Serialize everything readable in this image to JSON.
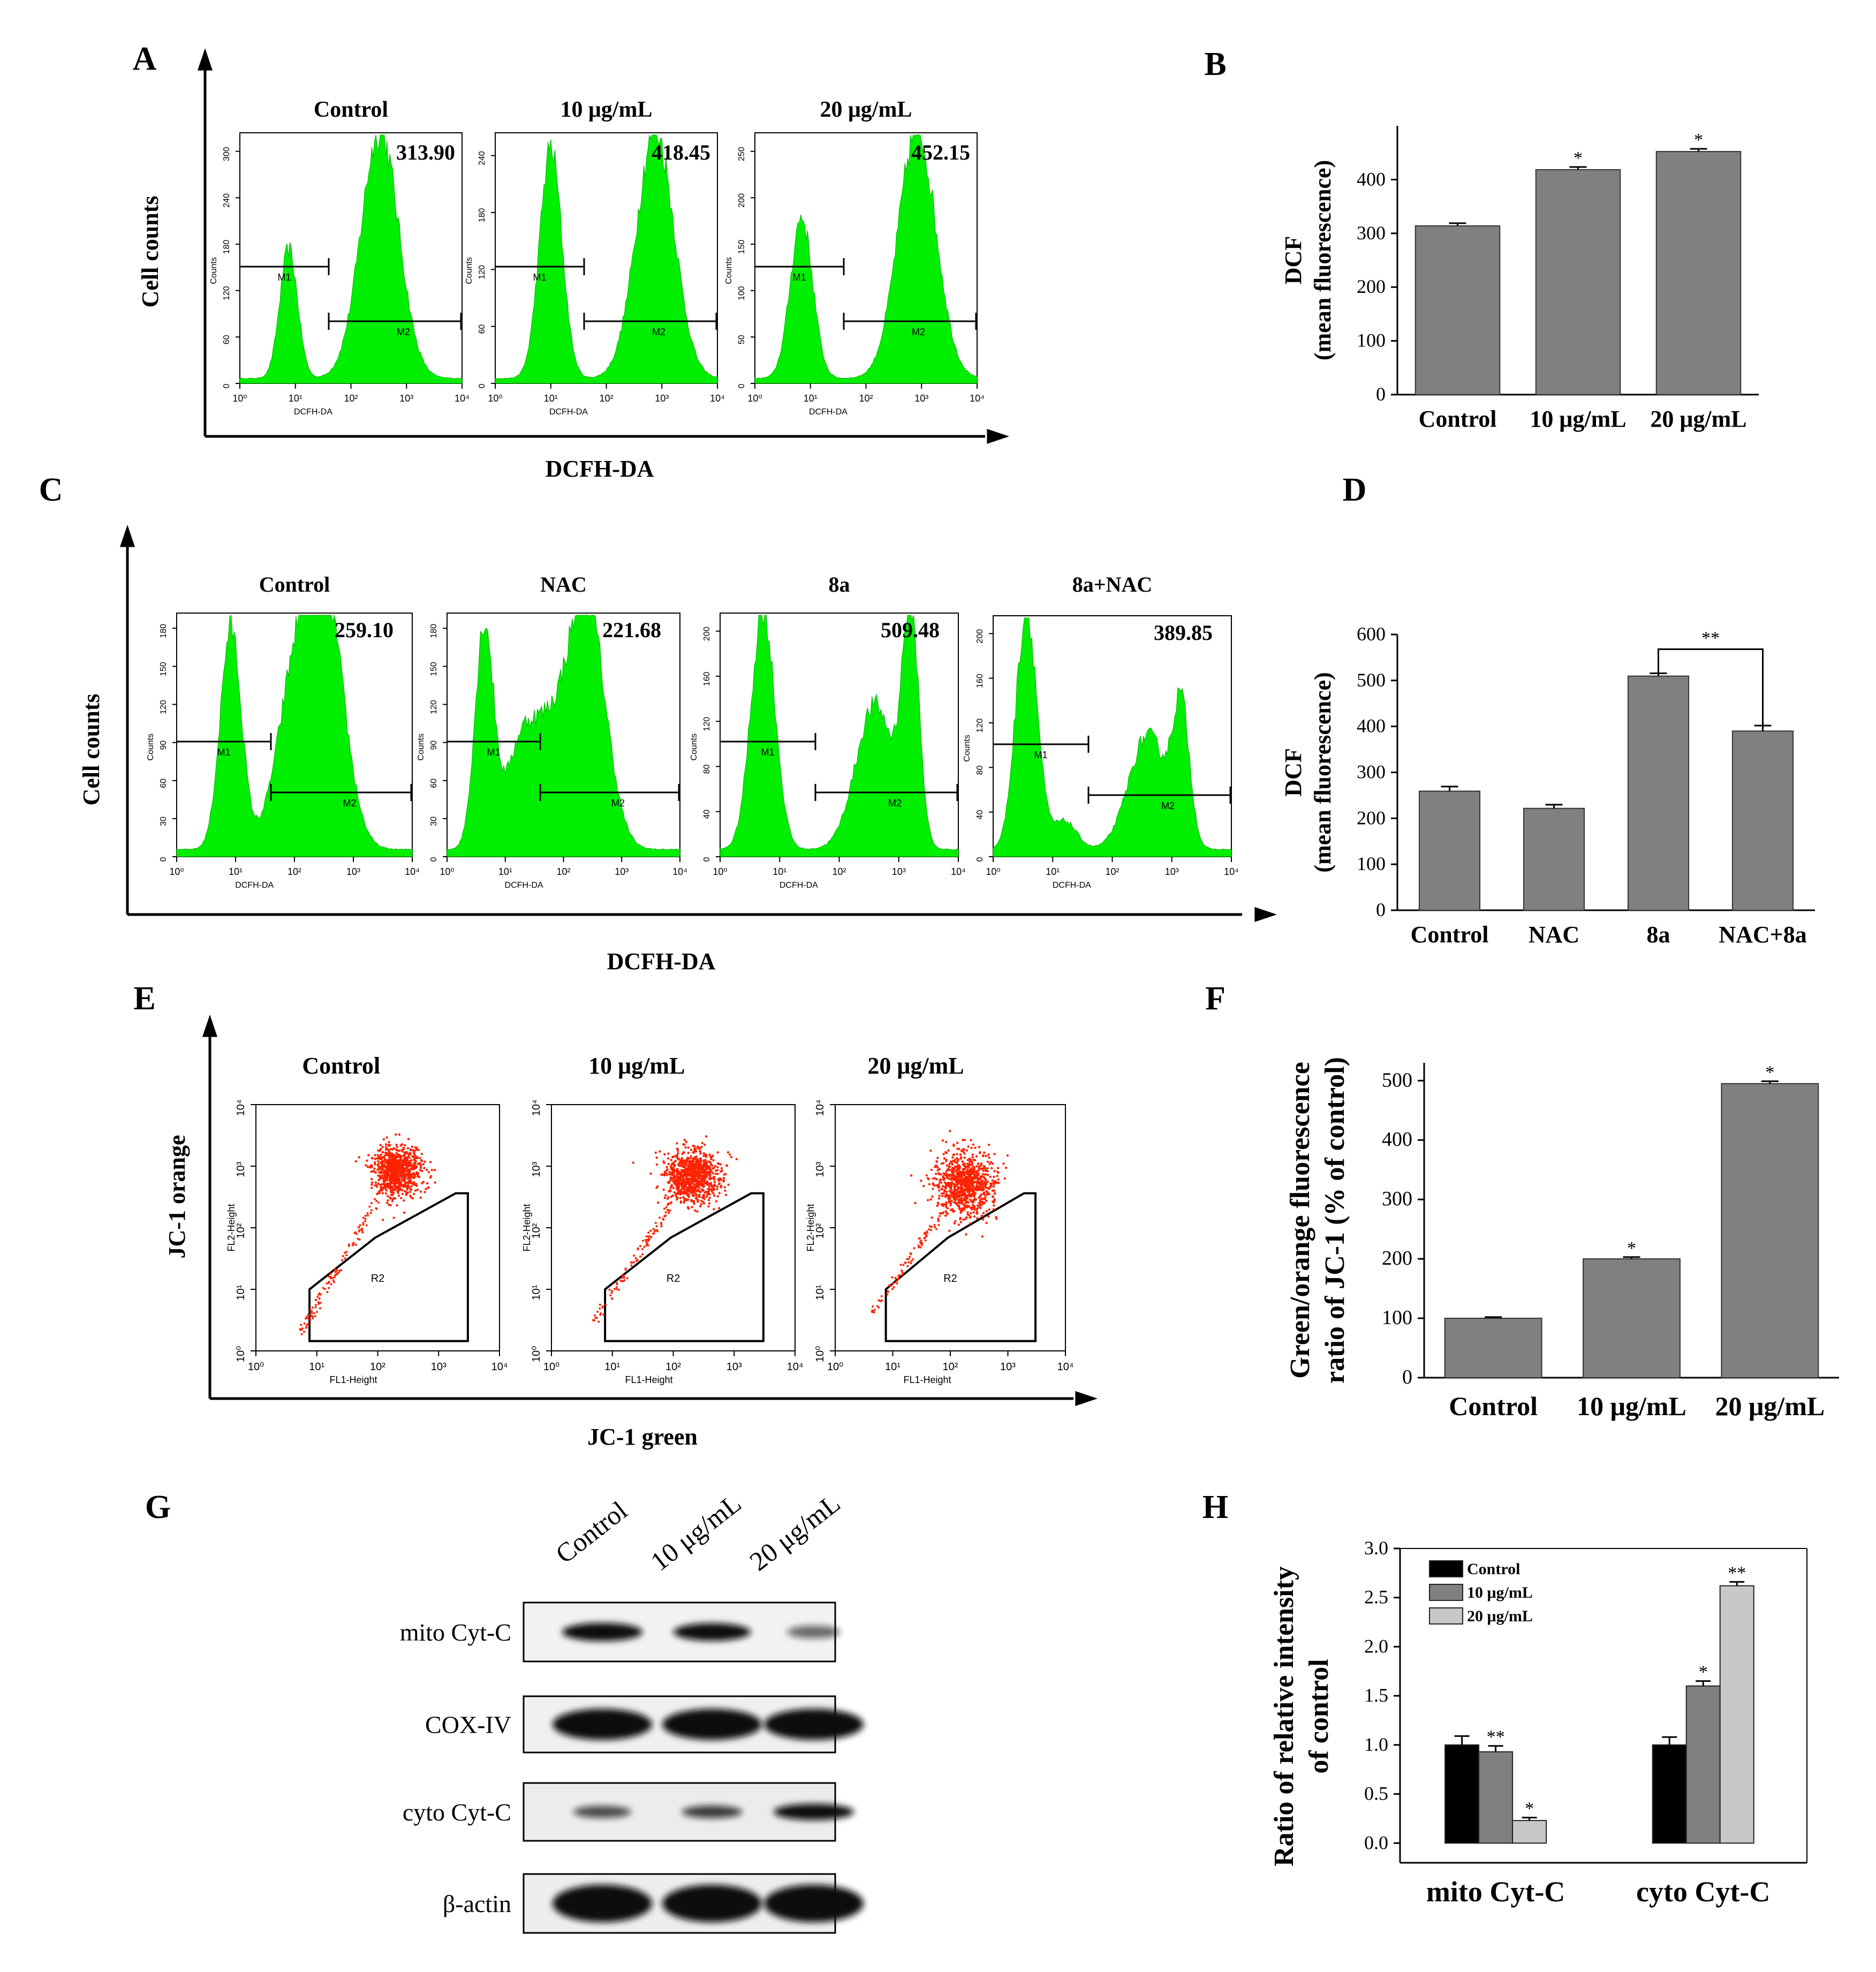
{
  "figure": {
    "panel_letters": [
      "A",
      "B",
      "C",
      "D",
      "E",
      "F",
      "G",
      "H"
    ],
    "colors": {
      "flow_fill": "#00ee00",
      "bar_gray": "#808080",
      "dot_red": "#ff2200",
      "bar_black": "#000000",
      "bar_light": "#c8c8c8"
    }
  },
  "panelA": {
    "axis_y": "Cell counts",
    "axis_x": "DCFH-DA",
    "histograms": [
      {
        "title": "Control",
        "value": "313.90",
        "yticks": [
          "0",
          "60",
          "120",
          "180",
          "240",
          "300"
        ],
        "ylabel": "Counts",
        "xlabel": "DCFH-DA",
        "xticks": [
          "10⁰",
          "10¹",
          "10²",
          "10³",
          "10⁴"
        ],
        "m1": "M1",
        "m2": "M2"
      },
      {
        "title": "10 μg/mL",
        "value": "418.45",
        "yticks": [
          "0",
          "60",
          "120",
          "180",
          "240"
        ],
        "ylabel": "Counts",
        "xlabel": "DCFH-DA",
        "xticks": [
          "10⁰",
          "10¹",
          "10²",
          "10³",
          "10⁴"
        ],
        "m1": "M1",
        "m2": "M2"
      },
      {
        "title": "20 μg/mL",
        "value": "452.15",
        "yticks": [
          "0",
          "50",
          "100",
          "150",
          "200",
          "250"
        ],
        "ylabel": "Counts",
        "xlabel": "DCFH-DA",
        "xticks": [
          "10⁰",
          "10¹",
          "10²",
          "10³",
          "10⁴"
        ],
        "m1": "M1",
        "m2": "M2"
      }
    ]
  },
  "panelC": {
    "axis_y": "Cell counts",
    "axis_x": "DCFH-DA",
    "histograms": [
      {
        "title": "Control",
        "value": "259.10",
        "yticks": [
          "0",
          "30",
          "60",
          "90",
          "120",
          "150",
          "180"
        ],
        "ylabel": "Counts",
        "xlabel": "DCFH-DA",
        "xticks": [
          "10⁰",
          "10¹",
          "10²",
          "10³",
          "10⁴"
        ],
        "m1": "M1",
        "m2": "M2"
      },
      {
        "title": "NAC",
        "value": "221.68",
        "yticks": [
          "0",
          "30",
          "60",
          "90",
          "120",
          "150",
          "180"
        ],
        "ylabel": "Counts",
        "xlabel": "DCFH-DA",
        "xticks": [
          "10⁰",
          "10¹",
          "10²",
          "10³",
          "10⁴"
        ],
        "m1": "M1",
        "m2": "M2"
      },
      {
        "title": "8a",
        "value": "509.48",
        "yticks": [
          "0",
          "40",
          "80",
          "120",
          "160",
          "200"
        ],
        "ylabel": "Counts",
        "xlabel": "DCFH-DA",
        "xticks": [
          "10⁰",
          "10¹",
          "10²",
          "10³",
          "10⁴"
        ],
        "m1": "M1",
        "m2": "M2"
      },
      {
        "title": "8a+NAC",
        "value": "389.85",
        "yticks": [
          "0",
          "40",
          "80",
          "120",
          "160",
          "200"
        ],
        "ylabel": "Counts",
        "xlabel": "DCFH-DA",
        "xticks": [
          "10⁰",
          "10¹",
          "10²",
          "10³",
          "10⁴"
        ],
        "m1": "M1",
        "m2": "M2"
      }
    ]
  },
  "panelE": {
    "axis_y": "JC-1 orange",
    "axis_x": "JC-1 green",
    "plots": [
      {
        "title": "Control",
        "ylabel": "FL2-Height",
        "xlabel": "FL1-Height",
        "gate": "R2",
        "yticks": [
          "10⁰",
          "10¹",
          "10²",
          "10³",
          "10⁴"
        ],
        "xticks": [
          "10⁰",
          "10¹",
          "10²",
          "10³",
          "10⁴"
        ]
      },
      {
        "title": "10 μg/mL",
        "ylabel": "FL2-Height",
        "xlabel": "FL1-Height",
        "gate": "R2",
        "yticks": [
          "10⁰",
          "10¹",
          "10²",
          "10³",
          "10⁴"
        ],
        "xticks": [
          "10⁰",
          "10¹",
          "10²",
          "10³",
          "10⁴"
        ]
      },
      {
        "title": "20 μg/mL",
        "ylabel": "FL2-Height",
        "xlabel": "FL1-Height",
        "gate": "R2",
        "yticks": [
          "10⁰",
          "10¹",
          "10²",
          "10³",
          "10⁴"
        ],
        "xticks": [
          "10⁰",
          "10¹",
          "10²",
          "10³",
          "10⁴"
        ]
      }
    ]
  },
  "panelG": {
    "lanes": [
      "Control",
      "10 μg/mL",
      "20 μg/mL"
    ],
    "rows": [
      {
        "label": "mito Cyt-C",
        "intensities": [
          1.0,
          0.92,
          0.25
        ]
      },
      {
        "label": "COX-IV",
        "intensities": [
          1.0,
          1.0,
          1.0
        ]
      },
      {
        "label": "cyto Cyt-C",
        "intensities": [
          0.38,
          0.45,
          1.0
        ]
      },
      {
        "label": "β-actin",
        "intensities": [
          1.0,
          1.0,
          1.0
        ]
      }
    ]
  },
  "chart_data": [
    {
      "id": "B",
      "type": "bar",
      "categories": [
        "Control",
        "10 μg/mL",
        "20 μg/mL"
      ],
      "values": [
        313.9,
        418.45,
        452.15
      ],
      "errors": [
        5,
        5,
        5
      ],
      "annotations": [
        "",
        "*",
        "*"
      ],
      "ylabel_line1": "DCF",
      "ylabel_line2": "(mean fluorescence)",
      "ylim": [
        0,
        500
      ],
      "yticks": [
        0,
        100,
        200,
        300,
        400
      ],
      "color": "#808080"
    },
    {
      "id": "D",
      "type": "bar",
      "categories": [
        "Control",
        "NAC",
        "8a",
        "NAC+8a"
      ],
      "values": [
        259.1,
        221.68,
        509.48,
        389.85
      ],
      "errors": [
        10,
        8,
        6,
        12
      ],
      "annotations": [
        "",
        "",
        "",
        ""
      ],
      "bracket": {
        "from": 2,
        "to": 3,
        "label": "**"
      },
      "ylabel_line1": "DCF",
      "ylabel_line2": "(mean fluorescence)",
      "ylim": [
        0,
        600
      ],
      "yticks": [
        0,
        100,
        200,
        300,
        400,
        500,
        600
      ],
      "color": "#808080"
    },
    {
      "id": "F",
      "type": "bar",
      "categories": [
        "Control",
        "10 μg/mL",
        "20 μg/mL"
      ],
      "values": [
        100,
        200,
        495
      ],
      "errors": [
        2,
        3,
        4
      ],
      "annotations": [
        "",
        "*",
        "*"
      ],
      "ylabel_line1": "Green/orange fluorescence",
      "ylabel_line2": "ratio of JC-1 (% of control)",
      "ylim": [
        0,
        530
      ],
      "yticks": [
        0,
        100,
        200,
        300,
        400,
        500
      ],
      "color": "#808080"
    },
    {
      "id": "H",
      "type": "bar",
      "categories": [
        "mito Cyt-C",
        "cyto Cyt-C"
      ],
      "series": [
        {
          "name": "Control",
          "values": [
            1.0,
            1.0
          ],
          "errors": [
            0.09,
            0.08
          ],
          "annotations": [
            "",
            ""
          ],
          "color": "#000000"
        },
        {
          "name": "10 μg/mL",
          "values": [
            0.93,
            1.6
          ],
          "errors": [
            0.06,
            0.05
          ],
          "annotations": [
            "**",
            "*"
          ],
          "color": "#808080"
        },
        {
          "name": "20 μg/mL",
          "values": [
            0.23,
            2.62
          ],
          "errors": [
            0.03,
            0.04
          ],
          "annotations": [
            "*",
            "**"
          ],
          "color": "#c8c8c8"
        }
      ],
      "ylabel_line1": "Ratio of relative intensity",
      "ylabel_line2": "of control",
      "ylim": [
        -0.2,
        3.0
      ],
      "yticks": [
        "0.0",
        "0.5",
        "1.0",
        "1.5",
        "2.0",
        "2.5",
        "3.0"
      ],
      "legend": "top-left"
    }
  ]
}
